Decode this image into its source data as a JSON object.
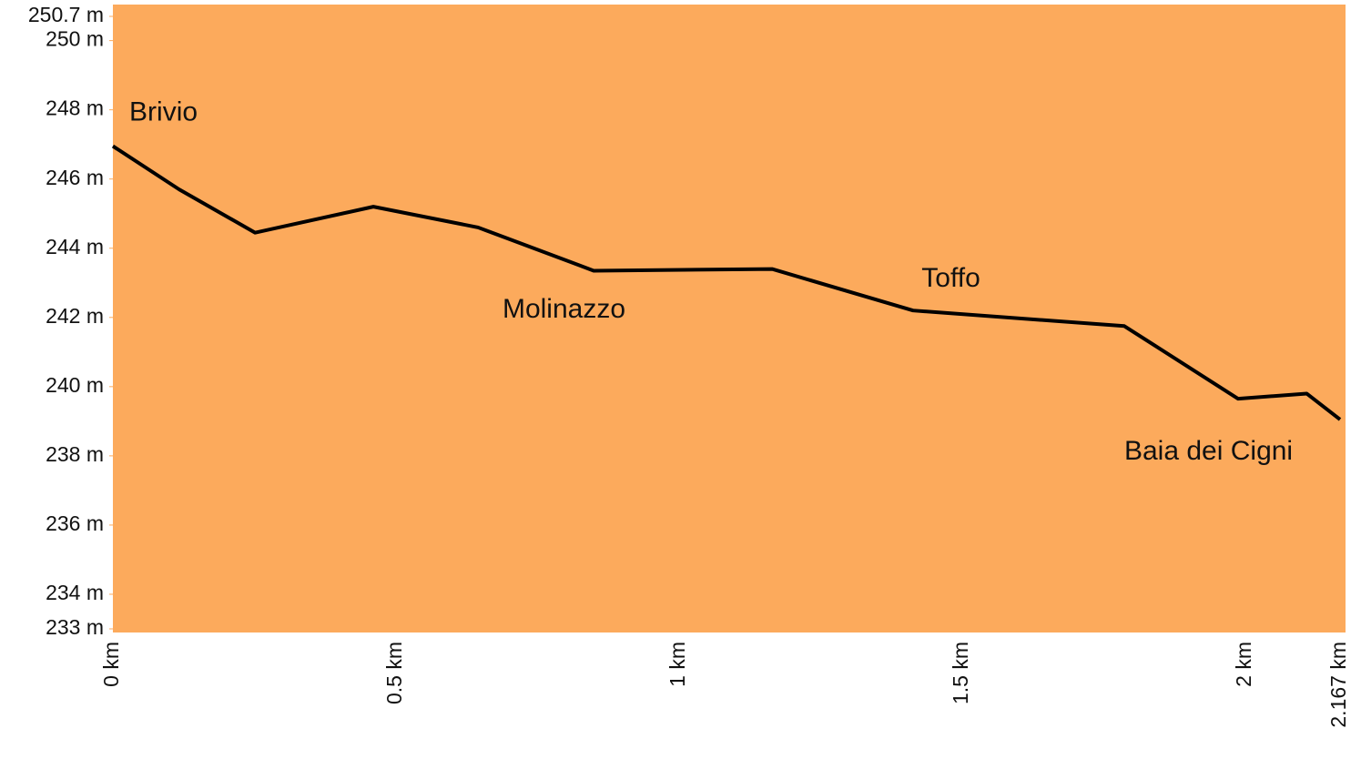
{
  "chart_data": {
    "type": "line",
    "x": [
      0,
      0.117,
      0.251,
      0.46,
      0.645,
      0.849,
      1.164,
      1.413,
      1.786,
      1.987,
      2.108,
      2.167
    ],
    "values": [
      246.95,
      245.7,
      244.45,
      245.2,
      244.6,
      243.35,
      243.4,
      242.2,
      241.75,
      239.65,
      239.8,
      239.05
    ],
    "color": "#000000",
    "background": "#fcaa5c",
    "xlim": [
      0,
      2.167
    ],
    "ylim": [
      233,
      250.7
    ],
    "xticks": [
      {
        "value": 0,
        "label": "0 km"
      },
      {
        "value": 0.5,
        "label": "0.5 km"
      },
      {
        "value": 1,
        "label": "1 km"
      },
      {
        "value": 1.5,
        "label": "1.5 km"
      },
      {
        "value": 2,
        "label": "2 km"
      },
      {
        "value": 2.167,
        "label": "2.167 km"
      }
    ],
    "yticks": [
      {
        "value": 250.7,
        "label": "250.7 m"
      },
      {
        "value": 250,
        "label": "250 m"
      },
      {
        "value": 248,
        "label": "248 m"
      },
      {
        "value": 246,
        "label": "246 m"
      },
      {
        "value": 244,
        "label": "244 m"
      },
      {
        "value": 242,
        "label": "242 m"
      },
      {
        "value": 240,
        "label": "240 m"
      },
      {
        "value": 238,
        "label": "238 m"
      },
      {
        "value": 236,
        "label": "236 m"
      },
      {
        "value": 234,
        "label": "234 m"
      },
      {
        "value": 233,
        "label": "233 m"
      }
    ],
    "annotations": [
      {
        "text": "Brivio",
        "x": 0.029,
        "y": 247.9
      },
      {
        "text": "Molinazzo",
        "x": 0.688,
        "y": 242.2
      },
      {
        "text": "Toffo",
        "x": 1.428,
        "y": 243.1
      },
      {
        "text": "Baia dei Cigni",
        "x": 1.786,
        "y": 238.1
      }
    ]
  }
}
